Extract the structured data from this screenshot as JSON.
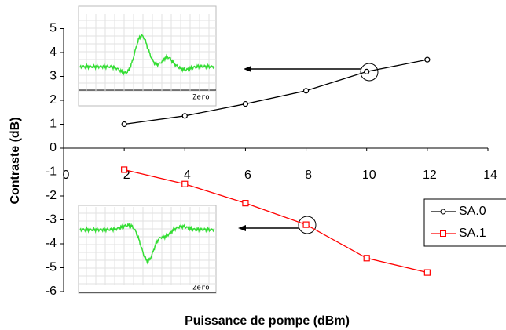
{
  "chart_data": {
    "type": "line",
    "xlabel": "Puissance de pompe (dBm)",
    "ylabel": "Contraste (dB)",
    "x": [
      2,
      4,
      6,
      8,
      10,
      12
    ],
    "series": [
      {
        "name": "SA.0",
        "color": "#000000",
        "marker": "circle",
        "values": [
          1.0,
          1.35,
          1.85,
          2.4,
          3.2,
          3.7
        ]
      },
      {
        "name": "SA.1",
        "color": "#ff0000",
        "marker": "square",
        "values": [
          -0.9,
          -1.5,
          -2.3,
          -3.2,
          -4.6,
          -5.2
        ]
      }
    ],
    "xlim": [
      0,
      14
    ],
    "xticks": [
      0,
      2,
      4,
      6,
      8,
      10,
      12,
      14
    ],
    "ylim": [
      -6,
      5
    ],
    "yticks": [
      -6,
      -5,
      -4,
      -3,
      -2,
      -1,
      0,
      1,
      2,
      3,
      4,
      5
    ],
    "legend": "right",
    "annotations": [
      "Zero",
      "Zero"
    ]
  }
}
